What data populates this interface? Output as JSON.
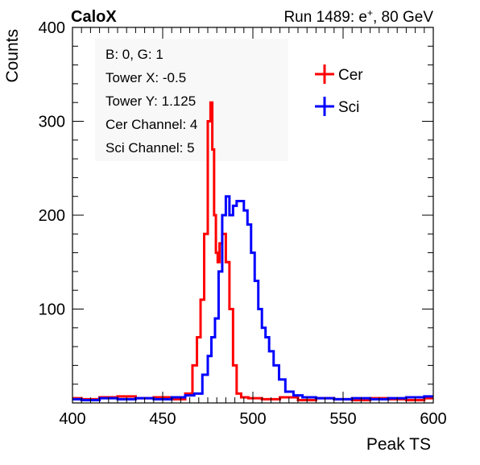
{
  "header": {
    "left_label": "CaloX",
    "right_label_prefix": "Run 1489: e",
    "right_label_sup": "+",
    "right_label_suffix": ", 80 GeV"
  },
  "info_box": {
    "lines": [
      "B: 0, G: 1",
      "Tower X: -0.5",
      "Tower Y: 1.125",
      "Cer Channel: 4",
      "Sci Channel: 5"
    ]
  },
  "colors": {
    "cer": "#ff0000",
    "sci": "#0000ff",
    "axis": "#000000",
    "info_bg": "#f8f8f8"
  },
  "chart_data": {
    "type": "line",
    "title": "",
    "xlabel": "Peak TS",
    "ylabel": "Counts",
    "xlim": [
      400,
      600
    ],
    "ylim": [
      0,
      400
    ],
    "xticks": [
      400,
      450,
      500,
      550,
      600
    ],
    "yticks": [
      100,
      200,
      300,
      400
    ],
    "grid": false,
    "legend_position": "top-right",
    "series": [
      {
        "name": "Cer",
        "color": "#ff0000",
        "points": [
          [
            400,
            5
          ],
          [
            410,
            4
          ],
          [
            420,
            6
          ],
          [
            430,
            7
          ],
          [
            440,
            5
          ],
          [
            450,
            6
          ],
          [
            460,
            4
          ],
          [
            465,
            10
          ],
          [
            468,
            40
          ],
          [
            470,
            70
          ],
          [
            472,
            110
          ],
          [
            474,
            180
          ],
          [
            476,
            300
          ],
          [
            477,
            320
          ],
          [
            478,
            270
          ],
          [
            479,
            200
          ],
          [
            480,
            160
          ],
          [
            481,
            150
          ],
          [
            482,
            170
          ],
          [
            484,
            180
          ],
          [
            486,
            150
          ],
          [
            488,
            100
          ],
          [
            490,
            40
          ],
          [
            492,
            10
          ],
          [
            495,
            6
          ],
          [
            500,
            5
          ],
          [
            510,
            4
          ],
          [
            520,
            6
          ],
          [
            530,
            3
          ],
          [
            540,
            5
          ],
          [
            550,
            4
          ],
          [
            560,
            3
          ],
          [
            570,
            5
          ],
          [
            580,
            4
          ],
          [
            590,
            3
          ],
          [
            600,
            5
          ]
        ]
      },
      {
        "name": "Sci",
        "color": "#0000ff",
        "points": [
          [
            400,
            4
          ],
          [
            410,
            3
          ],
          [
            420,
            5
          ],
          [
            430,
            4
          ],
          [
            440,
            5
          ],
          [
            450,
            4
          ],
          [
            460,
            6
          ],
          [
            465,
            8
          ],
          [
            470,
            10
          ],
          [
            474,
            30
          ],
          [
            476,
            50
          ],
          [
            478,
            70
          ],
          [
            480,
            90
          ],
          [
            482,
            140
          ],
          [
            484,
            200
          ],
          [
            486,
            220
          ],
          [
            488,
            200
          ],
          [
            490,
            210
          ],
          [
            492,
            215
          ],
          [
            494,
            215
          ],
          [
            496,
            205
          ],
          [
            498,
            190
          ],
          [
            500,
            160
          ],
          [
            502,
            130
          ],
          [
            504,
            100
          ],
          [
            506,
            80
          ],
          [
            508,
            70
          ],
          [
            510,
            55
          ],
          [
            513,
            40
          ],
          [
            516,
            25
          ],
          [
            520,
            12
          ],
          [
            525,
            8
          ],
          [
            530,
            6
          ],
          [
            540,
            5
          ],
          [
            550,
            4
          ],
          [
            560,
            5
          ],
          [
            570,
            4
          ],
          [
            580,
            5
          ],
          [
            590,
            6
          ],
          [
            600,
            7
          ]
        ]
      }
    ]
  }
}
